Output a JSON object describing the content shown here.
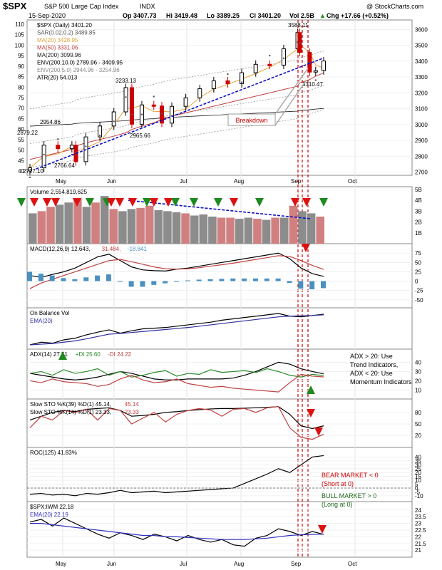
{
  "header": {
    "symbol": "$SPX",
    "name": "S&P 500 Large Cap Index",
    "exchange": "INDX",
    "watermark": "@ StockCharts.com",
    "date": "15-Sep-2020",
    "op": "Op 3407.73",
    "hi": "Hi 3419.48",
    "lo": "Lo 3389.25",
    "cl": "Cl 3401.20",
    "vol": "Vol 2.5B",
    "chg": "Chg +17.66 (+0.52%)",
    "chg_arrow": "▲"
  },
  "colors": {
    "up": "#000000",
    "down": "#cc0000",
    "sar": "#555555",
    "ma20": "#e6a23c",
    "ma50": "#c04040",
    "ma200": "#1a1a1a",
    "trendline": "#1010c0",
    "vline": "#cc0000",
    "volume_up": "#8c8c8c",
    "volume_down": "#d08080",
    "macd_hist": "#4a90c0",
    "obv_ema": "#3030a0",
    "adx": "#000000",
    "plus_di": "#2a8a2a",
    "minus_di": "#c04040",
    "sto_fast": "#c04040",
    "roc_line": "#000000",
    "rel_ema": "#3030c0",
    "arrow_up": "#1f8a1f",
    "arrow_down": "#dd1111"
  },
  "legend": {
    "price": "$SPX (Daily) 3401.20",
    "sar": "SAR(0.02,0.2) 3489.85",
    "ma20": "MA(20) 3428.95",
    "ma50": "MA(50) 3331.06",
    "ma200": "MA(200) 3099.96",
    "env200_10": "ENV(200,10.0) 2789.96 - 3409.95",
    "env200_5": "ENV(200,5.0) 2944.96 - 3254.96",
    "atr": "ATR(20) 54.013",
    "volume": "Volume 2,554,819,625",
    "macd_a": "MACD(12,26,9) 12.643,",
    "macd_b": "31.484,",
    "macd_c": "-18.841",
    "obv": "On Balance Vol",
    "obv_ema": "EMA(20)",
    "adx_a": "ADX(14) 27.51",
    "adx_b": "+DI 25.60",
    "adx_c": "-DI 24.22",
    "sto39_a": "Slow STO %K(39) %D(1) 45.14,",
    "sto39_b": "45.14",
    "sto14_a": "Slow STO %K(14) %D(1) 23.33,",
    "sto14_b": "23.33",
    "roc": "ROC(125) 41.83%",
    "rel": "$SPX:IWM 22.18",
    "rel_ema": "EMA(20) 22.19"
  },
  "annotations": {
    "breakdown": "Breakdown",
    "adx_note": [
      "ADX > 20: Use",
      "Trend Indicators,",
      "ADX < 20: Use",
      "Momentum Indicators"
    ],
    "bear": [
      "BEAR MARKET < 0",
      "(Short at 0)"
    ],
    "bull": [
      "BULL MARKET > 0",
      "(Long at 0)"
    ],
    "price_labels": [
      "3588.11",
      "3233.13",
      "2954.86",
      "2879.22",
      "2965.66",
      "2766.64",
      "2727.10",
      "3310.47"
    ]
  },
  "chart_data": [
    {
      "type": "line",
      "title": "$SPX (Daily) 3401.20",
      "x_ticks": [
        "May",
        "Jun",
        "Jul",
        "Aug",
        "Sep",
        "Oct"
      ],
      "y_ticks_right": [
        2700,
        2800,
        2900,
        3000,
        3100,
        3200,
        3300,
        3400,
        3500,
        3600
      ],
      "y_ticks_left": [
        40,
        45,
        50,
        55,
        60,
        65,
        70,
        75,
        80,
        85,
        90,
        95,
        100,
        105,
        110
      ],
      "ylim": [
        2680,
        3660
      ],
      "series": [
        {
          "name": "$SPX",
          "x": [
            "2020-04-21",
            "2020-04-28",
            "2020-05-05",
            "2020-05-12",
            "2020-05-14",
            "2020-05-19",
            "2020-05-26",
            "2020-06-02",
            "2020-06-08",
            "2020-06-11",
            "2020-06-16",
            "2020-06-22",
            "2020-06-26",
            "2020-07-01",
            "2020-07-08",
            "2020-07-15",
            "2020-07-22",
            "2020-07-29",
            "2020-08-05",
            "2020-08-12",
            "2020-08-19",
            "2020-08-26",
            "2020-09-02",
            "2020-09-03",
            "2020-09-08",
            "2020-09-11",
            "2020-09-15"
          ],
          "values": [
            2727,
            2870,
            2848,
            2870,
            2766,
            2922,
            2991,
            3080,
            3233,
            3002,
            3124,
            3117,
            3009,
            3115,
            3169,
            3226,
            3276,
            3258,
            3327,
            3380,
            3375,
            3478,
            3580,
            3455,
            3331,
            3340,
            3401
          ]
        }
      ]
    },
    {
      "type": "bar",
      "title": "Volume 2,554,819,625",
      "y_ticks_right": [
        "1B",
        "2B",
        "3B",
        "4B",
        "5B"
      ],
      "ylim": [
        0,
        5
      ],
      "series": [
        {
          "name": "Volume",
          "values": [
            2.8,
            3.0,
            3.4,
            3.6,
            3.8,
            4.2,
            3.4,
            3.8,
            4.4,
            3.2,
            3.0,
            3.2,
            3.3,
            3.5,
            3.1,
            3.0,
            2.9,
            2.8,
            2.6,
            2.7,
            2.5,
            2.4,
            2.4,
            2.3,
            2.4,
            2.3,
            2.2,
            2.4,
            2.4,
            3.5,
            3.0,
            2.8,
            2.5
          ]
        }
      ]
    },
    {
      "type": "line",
      "title": "MACD(12,26,9) 12.643, 31.484, -18.841",
      "y_ticks_right": [
        -50,
        -25,
        0,
        25,
        50,
        75
      ],
      "ylim": [
        -60,
        85
      ],
      "series": [
        {
          "name": "MACD",
          "values": [
            15,
            10,
            18,
            25,
            35,
            50,
            65,
            72,
            55,
            38,
            30,
            28,
            27,
            32,
            35,
            40,
            45,
            50,
            55,
            60,
            65,
            70,
            75,
            60,
            35,
            20,
            12.6
          ]
        },
        {
          "name": "Signal",
          "values": [
            -20,
            -5,
            5,
            15,
            25,
            35,
            45,
            55,
            58,
            52,
            45,
            38,
            33,
            32,
            33,
            36,
            40,
            44,
            48,
            53,
            58,
            63,
            68,
            66,
            55,
            42,
            31.5
          ]
        }
      ],
      "histogram": [
        25,
        20,
        15,
        8,
        5,
        10,
        15,
        18,
        0,
        -15,
        -15,
        -10,
        -6,
        0,
        2,
        4,
        5,
        6,
        7,
        7,
        7,
        7,
        7,
        -5,
        -20,
        -22,
        -18.8
      ]
    },
    {
      "type": "line",
      "title": "On Balance Vol",
      "series": [
        {
          "name": "On Balance Vol",
          "values": [
            10,
            18,
            15,
            25,
            30,
            40,
            48,
            55,
            45,
            52,
            58,
            60,
            62,
            66,
            70,
            74,
            78,
            84,
            88,
            92,
            96,
            100,
            104,
            96,
            94,
            98,
            102
          ]
        },
        {
          "name": "EMA(20)",
          "values": [
            10,
            12,
            14,
            18,
            22,
            28,
            35,
            42,
            44,
            47,
            50,
            53,
            56,
            59,
            62,
            66,
            70,
            74,
            78,
            82,
            86,
            90,
            94,
            96,
            97,
            98,
            100
          ]
        }
      ]
    },
    {
      "type": "line",
      "title": "ADX(14) 27.51 +DI 25.60 -DI 24.22",
      "y_ticks_right": [
        10,
        20,
        30,
        40
      ],
      "ylim": [
        5,
        48
      ],
      "series": [
        {
          "name": "ADX(14)",
          "values": [
            28,
            26,
            24,
            22,
            21,
            22,
            24,
            27,
            30,
            28,
            25,
            22,
            21,
            21,
            22,
            22,
            22,
            22,
            23,
            26,
            30,
            35,
            40,
            38,
            33,
            30,
            27.5
          ]
        },
        {
          "name": "+DI",
          "values": [
            28,
            30,
            26,
            32,
            28,
            30,
            33,
            26,
            30,
            24,
            26,
            29,
            31,
            25,
            28,
            27,
            32,
            29,
            30,
            31,
            29,
            33,
            30,
            26,
            24,
            27,
            25.6
          ]
        },
        {
          "name": "-DI",
          "values": [
            20,
            18,
            22,
            19,
            18,
            17,
            14,
            16,
            22,
            26,
            21,
            18,
            19,
            22,
            17,
            15,
            13,
            14,
            12,
            11,
            10,
            9,
            8,
            18,
            27,
            25,
            24.2
          ]
        }
      ]
    },
    {
      "type": "line",
      "title": "Slow STO %K(39) %D(1) 45.14, 45.14 / Slow STO %K(14) %D(1) 23.33, 23.33",
      "y_ticks_right": [
        20,
        50,
        80
      ],
      "ylim": [
        0,
        100
      ],
      "series": [
        {
          "name": "Slow STO %K(39)",
          "values": [
            60,
            70,
            80,
            85,
            82,
            88,
            90,
            92,
            85,
            70,
            72,
            75,
            80,
            82,
            85,
            87,
            89,
            90,
            90,
            91,
            92,
            93,
            95,
            75,
            45,
            38,
            45.14
          ]
        },
        {
          "name": "Slow STO %K(14)",
          "values": [
            40,
            70,
            60,
            85,
            80,
            88,
            60,
            90,
            85,
            50,
            65,
            80,
            55,
            75,
            85,
            90,
            86,
            70,
            88,
            90,
            80,
            92,
            95,
            40,
            15,
            10,
            23.33
          ]
        }
      ]
    },
    {
      "type": "line",
      "title": "ROC(125) 41.83%",
      "y_ticks_right": [
        -10,
        -5,
        0,
        5,
        10,
        15,
        20,
        25,
        30,
        35,
        40
      ],
      "ylim": [
        -12,
        45
      ],
      "series": [
        {
          "name": "ROC(125)",
          "values": [
            -8,
            -7,
            -9,
            -8,
            -10,
            -7,
            -8,
            -6,
            -3,
            -6,
            -5,
            -4,
            -6,
            -5,
            -4,
            -3,
            -2,
            -1,
            0,
            6,
            12,
            18,
            25,
            20,
            30,
            40,
            41.83
          ]
        }
      ]
    },
    {
      "type": "line",
      "title": "$SPX:IWM 22.18",
      "y_ticks_right": [
        21.0,
        21.5,
        22.0,
        22.5,
        23.0,
        23.5,
        24.0
      ],
      "ylim": [
        20.8,
        24.2
      ],
      "series": [
        {
          "name": "$SPX:IWM",
          "values": [
            23.1,
            23.3,
            22.8,
            23.4,
            23.0,
            22.6,
            22.2,
            21.9,
            22.3,
            22.1,
            21.8,
            22.2,
            22.0,
            21.7,
            22.1,
            21.8,
            21.6,
            21.8,
            21.4,
            21.3,
            21.9,
            22.1,
            22.6,
            22.4,
            22.1,
            22.4,
            22.18
          ]
        },
        {
          "name": "EMA(20)",
          "values": [
            23.0,
            23.0,
            22.9,
            22.8,
            22.7,
            22.6,
            22.5,
            22.4,
            22.3,
            22.2,
            22.1,
            22.1,
            22.0,
            22.0,
            21.95,
            21.9,
            21.85,
            21.8,
            21.8,
            21.8,
            21.85,
            21.9,
            22.0,
            22.1,
            22.15,
            22.18,
            22.19
          ]
        }
      ]
    }
  ]
}
